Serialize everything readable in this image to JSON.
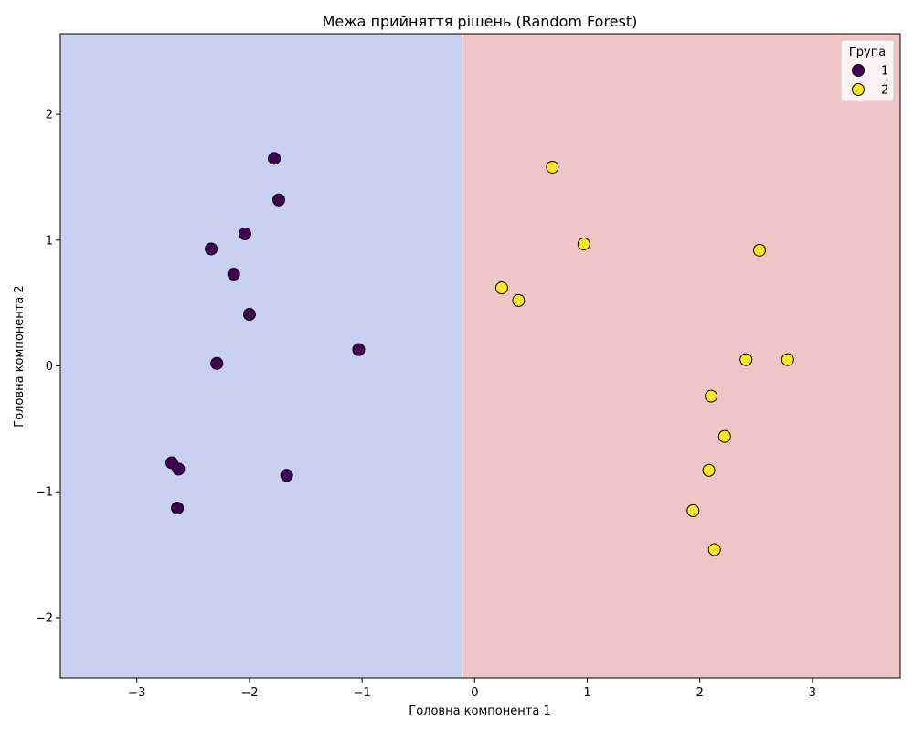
{
  "chart_data": {
    "type": "scatter",
    "title": "Межа прийняття рішень (Random Forest)",
    "xlabel": "Головна компонента 1",
    "ylabel": "Головна компонента 2",
    "xlim": [
      -3.68,
      3.78
    ],
    "ylim": [
      -2.48,
      2.64
    ],
    "x_ticks": [
      -3,
      -2,
      -1,
      0,
      1,
      2,
      3
    ],
    "y_ticks": [
      -2,
      -1,
      0,
      1,
      2
    ],
    "x_tick_labels": [
      "−3",
      "−2",
      "−1",
      "0",
      "1",
      "2",
      "3"
    ],
    "y_tick_labels": [
      "−2",
      "−1",
      "0",
      "1",
      "2"
    ],
    "grid": false,
    "decision_boundary": {
      "x": -0.11,
      "regions": [
        {
          "class": "1",
          "color": "#c8d1f2"
        },
        {
          "class": "2",
          "color": "#f0c5c6"
        }
      ]
    },
    "legend": {
      "title": "Група",
      "placement": "top-right",
      "entries": [
        "1",
        "2"
      ]
    },
    "series": [
      {
        "name": "1",
        "color": "#440154",
        "points": [
          {
            "x": -1.78,
            "y": 1.65
          },
          {
            "x": -1.74,
            "y": 1.32
          },
          {
            "x": -2.04,
            "y": 1.05
          },
          {
            "x": -2.34,
            "y": 0.93
          },
          {
            "x": -2.14,
            "y": 0.73
          },
          {
            "x": -2.0,
            "y": 0.41
          },
          {
            "x": -2.29,
            "y": 0.02
          },
          {
            "x": -1.03,
            "y": 0.13
          },
          {
            "x": -2.69,
            "y": -0.77
          },
          {
            "x": -2.63,
            "y": -0.82
          },
          {
            "x": -1.67,
            "y": -0.87
          },
          {
            "x": -2.64,
            "y": -1.13
          }
        ]
      },
      {
        "name": "2",
        "color": "#fde725",
        "points": [
          {
            "x": 0.69,
            "y": 1.58
          },
          {
            "x": 0.97,
            "y": 0.97
          },
          {
            "x": 2.53,
            "y": 0.92
          },
          {
            "x": 0.24,
            "y": 0.62
          },
          {
            "x": 0.39,
            "y": 0.52
          },
          {
            "x": 2.41,
            "y": 0.05
          },
          {
            "x": 2.78,
            "y": 0.05
          },
          {
            "x": 2.1,
            "y": -0.24
          },
          {
            "x": 2.22,
            "y": -0.56
          },
          {
            "x": 2.08,
            "y": -0.83
          },
          {
            "x": 1.94,
            "y": -1.15
          },
          {
            "x": 2.13,
            "y": -1.46
          }
        ]
      }
    ]
  }
}
